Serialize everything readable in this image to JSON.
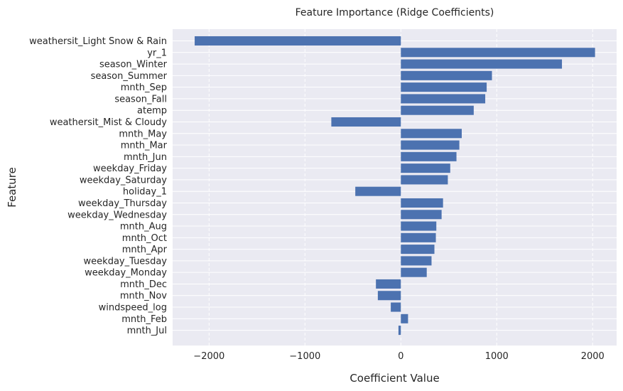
{
  "chart_data": {
    "type": "bar",
    "orientation": "horizontal",
    "title": "Feature Importance (Ridge Coefficients)",
    "xlabel": "Coefficient Value",
    "ylabel": "Feature",
    "xlim": [
      -2380,
      2250
    ],
    "xticks": [
      -2000,
      -1000,
      0,
      1000,
      2000
    ],
    "xtick_labels": [
      "−2000",
      "−1000",
      "0",
      "1000",
      "2000"
    ],
    "grid": true,
    "bar_color": "#4c72b0",
    "background_color": "#eaeaf2",
    "categories": [
      "weathersit_Light Snow & Rain",
      "yr_1",
      "season_Winter",
      "season_Summer",
      "mnth_Sep",
      "season_Fall",
      "atemp",
      "weathersit_Mist & Cloudy",
      "mnth_May",
      "mnth_Mar",
      "mnth_Jun",
      "weekday_Friday",
      "weekday_Saturday",
      "holiday_1",
      "weekday_Thursday",
      "weekday_Wednesday",
      "mnth_Aug",
      "mnth_Oct",
      "mnth_Apr",
      "weekday_Tuesday",
      "weekday_Monday",
      "mnth_Dec",
      "mnth_Nov",
      "windspeed_log",
      "mnth_Feb",
      "mnth_Jul"
    ],
    "values": [
      -2150,
      2025,
      1680,
      950,
      895,
      880,
      760,
      -725,
      635,
      610,
      580,
      515,
      490,
      -475,
      440,
      425,
      370,
      365,
      350,
      320,
      270,
      -260,
      -240,
      -105,
      75,
      -25
    ]
  }
}
